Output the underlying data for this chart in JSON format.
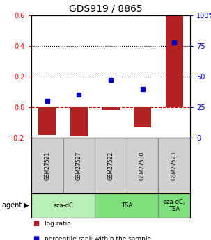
{
  "title": "GDS919 / 8865",
  "samples": [
    "GSM27521",
    "GSM27527",
    "GSM27522",
    "GSM27530",
    "GSM27523"
  ],
  "log_ratio": [
    -0.18,
    -0.19,
    -0.02,
    -0.13,
    0.6
  ],
  "percentile_rank": [
    30,
    35,
    47,
    40,
    78
  ],
  "ylim_left": [
    -0.2,
    0.6
  ],
  "ylim_right": [
    0,
    100
  ],
  "yticks_left": [
    -0.2,
    0.0,
    0.2,
    0.4,
    0.6
  ],
  "yticks_right": [
    0,
    25,
    50,
    75,
    100
  ],
  "ytick_labels_right": [
    "0",
    "25",
    "50",
    "75",
    "100%"
  ],
  "hlines": [
    0.2,
    0.4
  ],
  "bar_color": "#b22222",
  "dot_color": "#0000cc",
  "dashed_line_color": "#cc0000",
  "sample_box_color": "#d0d0d0",
  "agent_groups": [
    {
      "label": "aza-dC",
      "start": 0,
      "end": 2,
      "color": "#b8f0b8"
    },
    {
      "label": "TSA",
      "start": 2,
      "end": 4,
      "color": "#7de07d"
    },
    {
      "label": "aza-dC,\nTSA",
      "start": 4,
      "end": 5,
      "color": "#7de07d"
    }
  ],
  "legend_items": [
    {
      "color": "#b22222",
      "label": "log ratio"
    },
    {
      "color": "#0000cc",
      "label": "percentile rank within the sample"
    }
  ],
  "bar_width": 0.55
}
